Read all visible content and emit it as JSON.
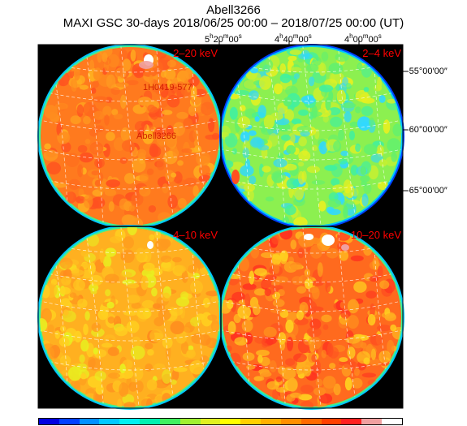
{
  "header": {
    "object_name": "Abell3266",
    "subtitle": "MAXI GSC 30-days 2018/06/25 00:00 – 2018/07/25 00:00 (UT)"
  },
  "ra_labels": [
    {
      "h": "5",
      "m": "20",
      "s": "00"
    },
    {
      "h": "4",
      "m": "40",
      "s": "00"
    },
    {
      "h": "4",
      "m": "00",
      "s": "00"
    }
  ],
  "dec_labels": [
    "-55°00′00″",
    "-60°00′00″",
    "-65°00′00″"
  ],
  "panels": [
    {
      "band": "2–20 keV",
      "base": "#ff7a1e",
      "mix": [
        "#ff8c1e",
        "#ff6a1e",
        "#ff9a20",
        "#ff5020",
        "#ffb020"
      ]
    },
    {
      "band": "2–4 keV",
      "base": "#8cf050",
      "mix": [
        "#40f0a0",
        "#c8f030",
        "#30d8ff",
        "#60f070",
        "#e8f020"
      ]
    },
    {
      "band": "4–10 keV",
      "base": "#ffb020",
      "mix": [
        "#ffd020",
        "#ff9a1e",
        "#e8f020",
        "#ff8c1e",
        "#ffc020"
      ]
    },
    {
      "band": "10–20 keV",
      "base": "#ff6a1e",
      "mix": [
        "#ff3020",
        "#ff8c1e",
        "#ffb020",
        "#ff5020",
        "#ffd020"
      ]
    }
  ],
  "sources": [
    {
      "name": "1H0419-577"
    },
    {
      "name": "Abell3266"
    }
  ],
  "colorbar": [
    "#0000e0",
    "#0040ff",
    "#0090ff",
    "#00c8ff",
    "#00f0f0",
    "#00f0b0",
    "#40f060",
    "#a0f030",
    "#e0f020",
    "#ffff00",
    "#ffd000",
    "#ffb000",
    "#ff9000",
    "#ff6a00",
    "#ff4000",
    "#ff2020",
    "#f0a0a0",
    "#ffffff"
  ],
  "colors": {
    "band_label": "#ff0000",
    "source_label": "#d02000",
    "grid": "#ffffff"
  }
}
